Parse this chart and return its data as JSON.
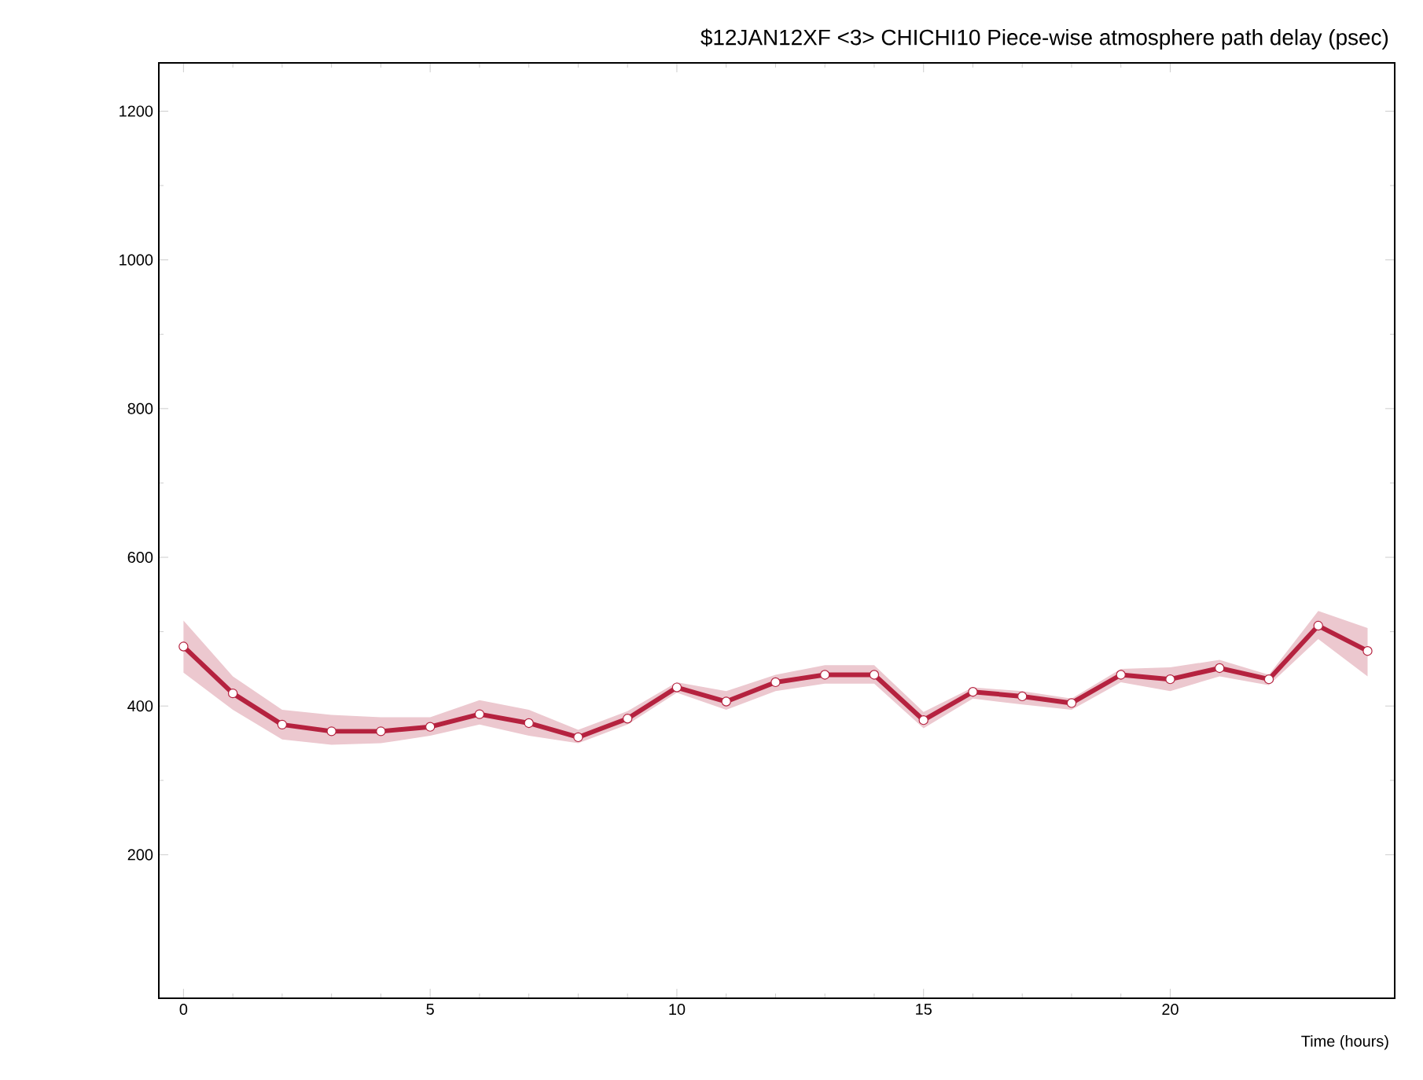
{
  "chart_data": {
    "type": "line",
    "title": "$12JAN12XF <3>  CHICHI10  Piece-wise atmosphere path delay (psec)",
    "xlabel": "Time (hours)",
    "x": [
      0,
      1,
      2,
      3,
      4,
      5,
      6,
      7,
      8,
      9,
      10,
      11,
      12,
      13,
      14,
      15,
      16,
      17,
      18,
      19,
      20,
      21,
      22,
      23,
      24
    ],
    "series": [
      {
        "color": "#b5223f",
        "values": [
          480,
          417,
          375,
          366,
          366,
          372,
          389,
          377,
          358,
          383,
          425,
          406,
          432,
          442,
          442,
          381,
          419,
          413,
          404,
          442,
          436,
          451,
          436,
          508,
          474
        ],
        "lower": [
          445,
          395,
          355,
          348,
          350,
          360,
          375,
          360,
          350,
          375,
          418,
          395,
          420,
          430,
          430,
          370,
          410,
          402,
          395,
          432,
          420,
          440,
          428,
          490,
          440
        ],
        "upper": [
          515,
          440,
          395,
          388,
          385,
          385,
          408,
          395,
          368,
          393,
          432,
          420,
          442,
          455,
          455,
          392,
          425,
          420,
          410,
          450,
          452,
          462,
          442,
          528,
          505
        ]
      }
    ],
    "xlim": [
      -0.5,
      24.55
    ],
    "ylim": [
      7,
      1265
    ],
    "xticks": [
      0,
      5,
      10,
      15,
      20
    ],
    "yticks": [
      200,
      400,
      600,
      800,
      1000,
      1200
    ],
    "marker": "circle",
    "line_style": "solid",
    "grid": false
  }
}
